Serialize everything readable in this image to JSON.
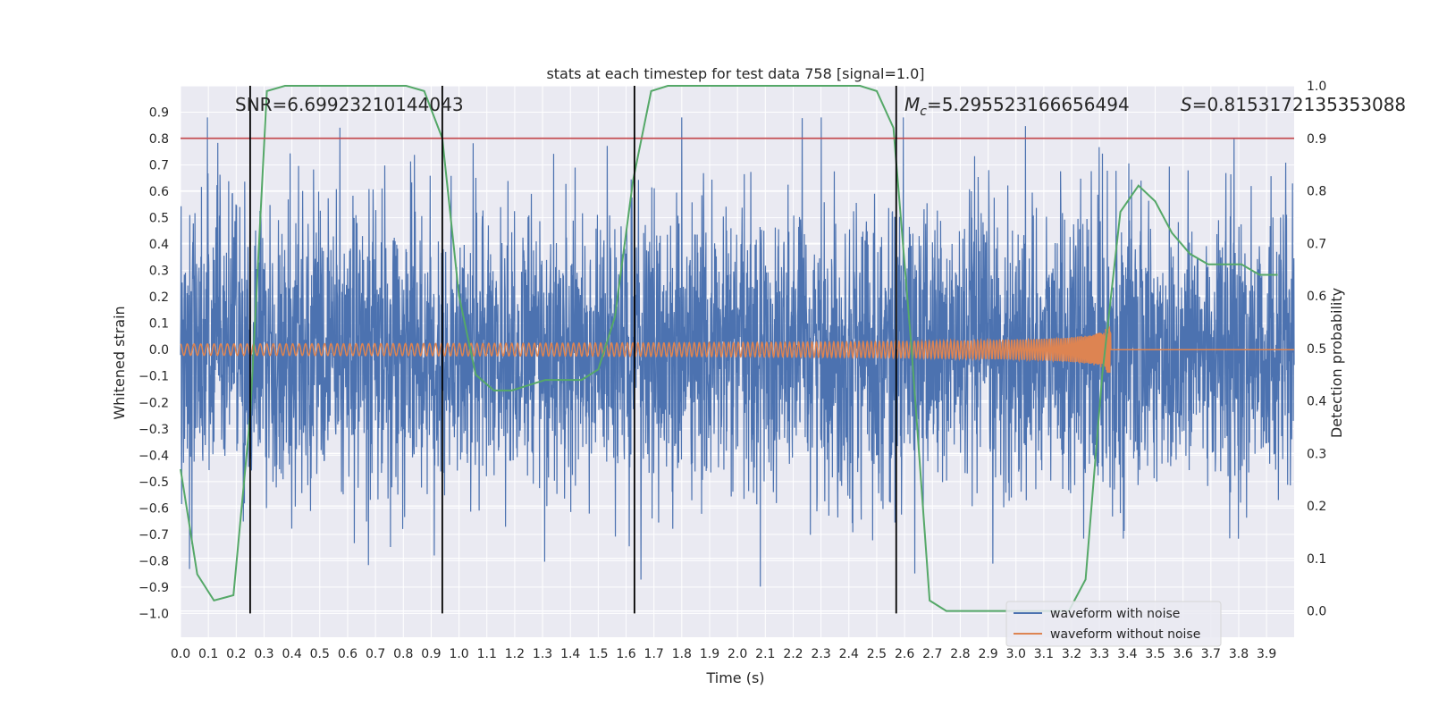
{
  "chart_data": {
    "type": "line",
    "title": "stats at each timestep for test data 758 [signal=1.0]",
    "xlabel": "Time (s)",
    "ylabel": "Whitened strain",
    "y2label": "Detection probability",
    "xlim": [
      0.0,
      3.999
    ],
    "ylim": [
      -1.09,
      1.0
    ],
    "y2lim": [
      -0.05,
      1.0
    ],
    "xticks": [
      "0.0",
      "0.1",
      "0.2",
      "0.3",
      "0.4",
      "0.5",
      "0.6",
      "0.7",
      "0.8",
      "0.9",
      "1.0",
      "1.1",
      "1.2",
      "1.3",
      "1.4",
      "1.5",
      "1.6",
      "1.7",
      "1.8",
      "1.9",
      "2.0",
      "2.1",
      "2.2",
      "2.3",
      "2.4",
      "2.5",
      "2.6",
      "2.7",
      "2.8",
      "2.9",
      "3.0",
      "3.1",
      "3.2",
      "3.3",
      "3.4",
      "3.5",
      "3.6",
      "3.7",
      "3.8",
      "3.9"
    ],
    "yticks": [
      "0.9",
      "0.8",
      "0.7",
      "0.6",
      "0.5",
      "0.4",
      "0.3",
      "0.2",
      "0.1",
      "0.0",
      "−0.1",
      "−0.2",
      "−0.3",
      "−0.4",
      "−0.5",
      "−0.6",
      "−0.7",
      "−0.8",
      "−0.9",
      "−1.0"
    ],
    "y2ticks": [
      "1.0",
      "0.9",
      "0.8",
      "0.7",
      "0.6",
      "0.5",
      "0.4",
      "0.3",
      "0.2",
      "0.1",
      "0.0"
    ],
    "annotations": {
      "snr": "SNR=6.69923210144043",
      "mc_symbol": "M",
      "mc_sub": "c",
      "mc_value": "=5.295523166656494",
      "s_symbol": "S",
      "s_value": "=0.8153172135353088"
    },
    "threshold": {
      "y2": 0.9,
      "color": "#c44e52"
    },
    "vlines_x": [
      0.25,
      0.94,
      1.63,
      2.57
    ],
    "series": [
      {
        "name": "waveform with noise",
        "color": "#4c72b0",
        "description": "dense noisy strain, 4096 samples over 0-4 s, amplitude roughly within [-1.0, 0.88]"
      },
      {
        "name": "waveform without noise",
        "color": "#dd8452",
        "description": "chirp signal, amplitude ~0.02 rising to ~0.2 at merger near t=3.34 s, zero afterwards"
      },
      {
        "color": "#55a868",
        "axis": "y2",
        "x": [
          0.0,
          0.06,
          0.12,
          0.19,
          0.25,
          0.31,
          0.375,
          0.44,
          0.5,
          0.56,
          0.625,
          0.69,
          0.75,
          0.81,
          0.875,
          0.94,
          1.0,
          1.06,
          1.125,
          1.19,
          1.25,
          1.31,
          1.375,
          1.44,
          1.5,
          1.56,
          1.625,
          1.69,
          1.75,
          1.81,
          1.875,
          1.94,
          2.0,
          2.06,
          2.125,
          2.19,
          2.25,
          2.31,
          2.375,
          2.44,
          2.5,
          2.56,
          2.625,
          2.69,
          2.75,
          2.81,
          2.875,
          2.94,
          3.0,
          3.06,
          3.125,
          3.19,
          3.25,
          3.31,
          3.375,
          3.44,
          3.5,
          3.56,
          3.625,
          3.69,
          3.75,
          3.81,
          3.875,
          3.94
        ],
        "values": [
          0.27,
          0.07,
          0.02,
          0.03,
          0.37,
          0.99,
          1.0,
          1.0,
          1.0,
          1.0,
          1.0,
          1.0,
          1.0,
          1.0,
          0.99,
          0.9,
          0.6,
          0.45,
          0.42,
          0.42,
          0.43,
          0.44,
          0.44,
          0.44,
          0.46,
          0.56,
          0.82,
          0.99,
          1.0,
          1.0,
          1.0,
          1.0,
          1.0,
          1.0,
          1.0,
          1.0,
          1.0,
          1.0,
          1.0,
          1.0,
          0.99,
          0.92,
          0.5,
          0.02,
          0.0,
          0.0,
          0.0,
          0.0,
          0.0,
          0.0,
          0.0,
          0.0,
          0.06,
          0.45,
          0.76,
          0.81,
          0.78,
          0.72,
          0.68,
          0.66,
          0.66,
          0.66,
          0.64,
          0.64
        ]
      }
    ],
    "legend": {
      "position": "lower right"
    },
    "grid": true,
    "colors": {
      "background": "#eaeaf2",
      "grid": "#ffffff",
      "vline": "#000000"
    }
  }
}
